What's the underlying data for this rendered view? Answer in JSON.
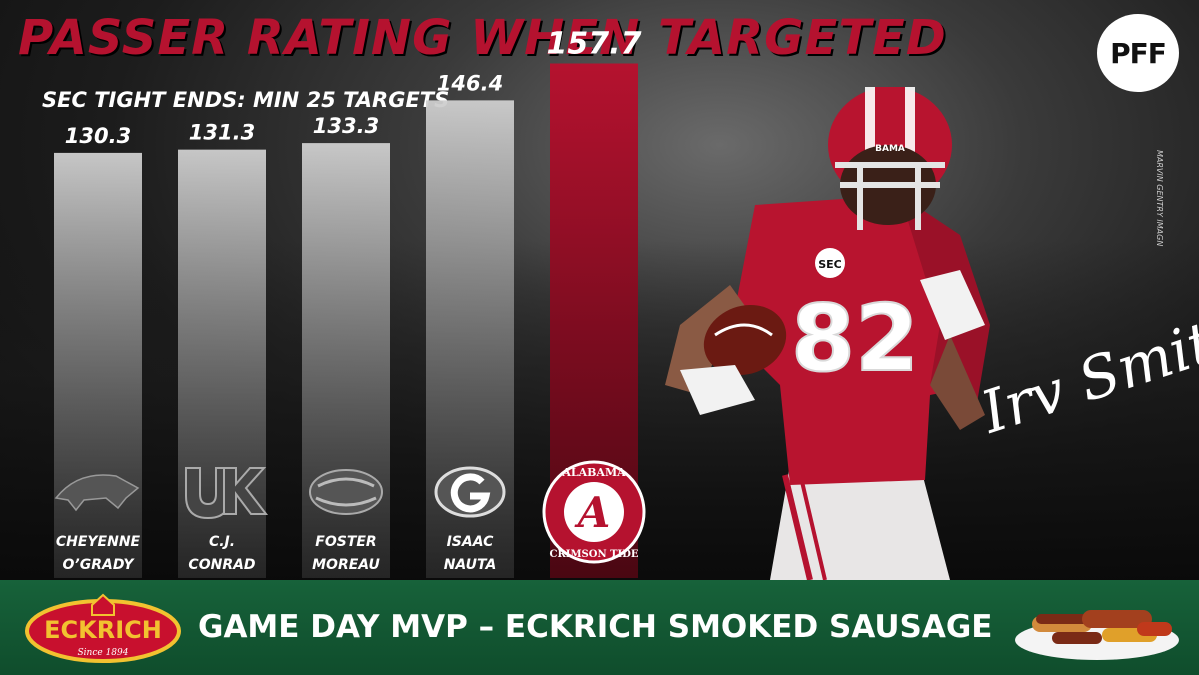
{
  "header": {
    "title": "PASSER RATING WHEN TARGETED",
    "subtitle": "SEC TIGHT ENDS: MIN 25 TARGETS",
    "brand_logo": "PFF",
    "photo_credit": "MARVIN GENTRY IMAGN"
  },
  "chart_data": {
    "type": "bar",
    "title": "PASSER RATING WHEN TARGETED",
    "subtitle": "SEC TIGHT ENDS: MIN 25 TARGETS",
    "categories": [
      "CHEYENNE O’GRADY",
      "C.J. CONRAD",
      "FOSTER MOREAU",
      "ISAAC NAUTA",
      "IRV SMITH JR."
    ],
    "label_lines": [
      [
        "CHEYENNE",
        "O’GRADY"
      ],
      [
        "C.J.",
        "CONRAD"
      ],
      [
        "FOSTER",
        "MOREAU"
      ],
      [
        "ISAAC",
        "NAUTA"
      ],
      []
    ],
    "values": [
      130.3,
      131.3,
      133.3,
      146.4,
      157.7
    ],
    "value_labels": [
      "130.3",
      "131.3",
      "133.3",
      "146.4",
      "157.7"
    ],
    "team_icons": [
      "razorback-icon",
      "uk-icon",
      "tiger-icon",
      "georgia-g-icon",
      "alabama-script-a-icon"
    ],
    "alabama_logo_text": [
      "ALABAMA",
      "CRIMSON TIDE"
    ],
    "highlight_index": 4,
    "ylim": [
      0,
      160
    ],
    "grid": false,
    "xlabel": "",
    "ylabel": ""
  },
  "player": {
    "signature": "Irv Smith Jr.",
    "jersey_number": "82",
    "helmet_text": "BAMA",
    "patch_text": "SEC"
  },
  "banner": {
    "brand": "ECKRICH",
    "since": "Since 1894",
    "text": "GAME DAY MVP – ECKRICH SMOKED SAUSAGE"
  },
  "colors": {
    "crimson": "#b5122f",
    "bar_gray": "#cfcfcf",
    "banner_green": "#17623a",
    "sponsor_yellow": "#f2c230",
    "sponsor_red": "#c8102e"
  }
}
